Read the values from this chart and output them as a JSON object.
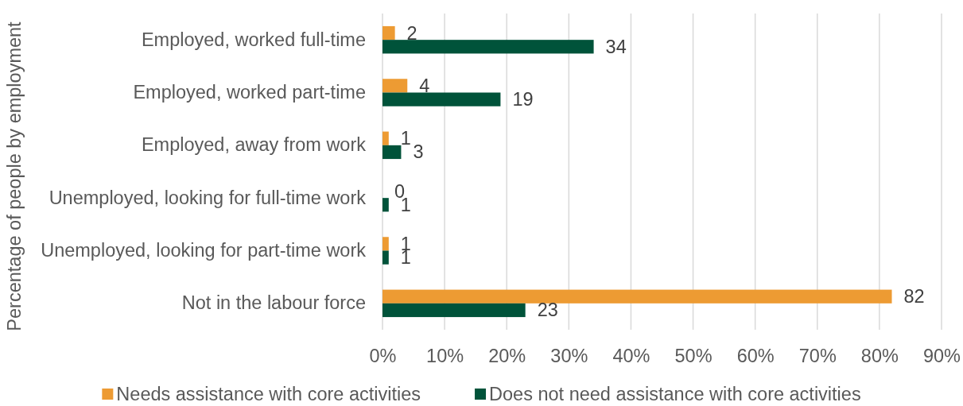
{
  "chart_data": {
    "type": "bar",
    "orientation": "horizontal",
    "ylabel": "Percentage of people by employment",
    "categories": [
      "Employed, worked full-time",
      "Employed, worked part-time",
      "Employed, away from work",
      "Unemployed, looking for full-time work",
      "Unemployed, looking for part-time work",
      "Not in the labour force"
    ],
    "series": [
      {
        "name": "Needs assistance with core activities",
        "color": "#ed9b33",
        "values": [
          2,
          4,
          1,
          0,
          1,
          82
        ]
      },
      {
        "name": "Does not need assistance with core activities",
        "color": "#00533a",
        "values": [
          34,
          19,
          3,
          1,
          1,
          23
        ]
      }
    ],
    "xlim": [
      0,
      90
    ],
    "xticks": [
      {
        "value": 0,
        "label": "0%"
      },
      {
        "value": 10,
        "label": "10%"
      },
      {
        "value": 20,
        "label": "20%"
      },
      {
        "value": 30,
        "label": "30%"
      },
      {
        "value": 40,
        "label": "40%"
      },
      {
        "value": 50,
        "label": "50%"
      },
      {
        "value": 60,
        "label": "60%"
      },
      {
        "value": 70,
        "label": "70%"
      },
      {
        "value": 80,
        "label": "80%"
      },
      {
        "value": 90,
        "label": "90%"
      }
    ],
    "grid": "x",
    "legend": "bottom",
    "data_labels": true
  }
}
